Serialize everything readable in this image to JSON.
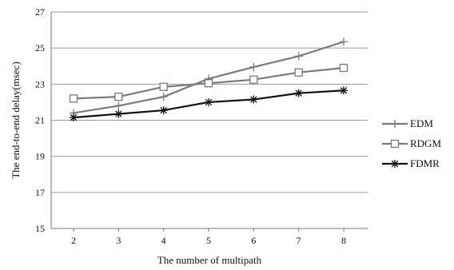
{
  "chart_data": {
    "type": "line",
    "title": "",
    "xlabel": "The number of multipath",
    "ylabel": "The end-to-end delay(msec)",
    "x": [
      2,
      3,
      4,
      5,
      6,
      7,
      8
    ],
    "ylim": [
      15,
      27
    ],
    "yticks": [
      15,
      17,
      19,
      21,
      23,
      25,
      27
    ],
    "grid": "horizontal",
    "legend": "right",
    "series": [
      {
        "name": "EDM",
        "marker": "plus",
        "color": "#7a7a7a",
        "values": [
          21.4,
          21.8,
          22.3,
          23.3,
          23.95,
          24.55,
          25.35
        ]
      },
      {
        "name": "RDGM",
        "marker": "square",
        "color": "#7a7a7a",
        "values": [
          22.2,
          22.3,
          22.85,
          23.05,
          23.25,
          23.65,
          23.9
        ]
      },
      {
        "name": "FDMR",
        "marker": "star",
        "color": "#111111",
        "values": [
          21.15,
          21.35,
          21.55,
          22.0,
          22.15,
          22.5,
          22.65
        ]
      }
    ]
  }
}
